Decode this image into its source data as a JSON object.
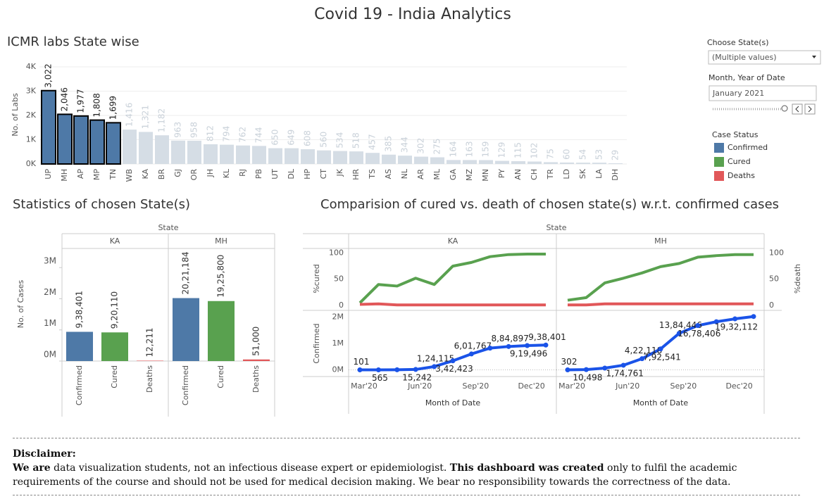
{
  "title": "Covid 19 - India Analytics",
  "filters": {
    "state_label": "Choose State(s)",
    "state_value": "(Multiple values)",
    "date_label": "Month, Year of Date",
    "date_value": "January 2021"
  },
  "legend": {
    "title": "Case Status",
    "items": [
      {
        "name": "Confirmed",
        "color": "#4e79a7"
      },
      {
        "name": "Cured",
        "color": "#59a14f"
      },
      {
        "name": "Deaths",
        "color": "#e15759"
      }
    ]
  },
  "chart_data": [
    {
      "type": "bar",
      "title": "ICMR labs State wise",
      "y_label": "No. of Labs",
      "categories": [
        "UP",
        "MH",
        "AP",
        "MP",
        "TN",
        "WB",
        "KA",
        "BR",
        "GJ",
        "OR",
        "JH",
        "KL",
        "RJ",
        "PB",
        "UT",
        "DL",
        "HP",
        "CT",
        "JK",
        "HR",
        "TS",
        "AS",
        "NL",
        "AR",
        "ML",
        "GA",
        "MZ",
        "MN",
        "PY",
        "AN",
        "CH",
        "TR",
        "LD",
        "SK",
        "LA",
        "DH"
      ],
      "values": [
        3022,
        2046,
        1977,
        1808,
        1699,
        1416,
        1321,
        1182,
        963,
        958,
        812,
        794,
        762,
        744,
        650,
        649,
        608,
        560,
        534,
        518,
        457,
        385,
        344,
        302,
        275,
        164,
        163,
        159,
        129,
        115,
        102,
        75,
        60,
        54,
        53,
        29
      ],
      "value_labels": [
        "3,022",
        "2,046",
        "1,977",
        "1,808",
        "1,699",
        "1,416",
        "1,321",
        "1,182",
        "963",
        "958",
        "812",
        "794",
        "762",
        "744",
        "650",
        "649",
        "608",
        "560",
        "534",
        "518",
        "457",
        "385",
        "344",
        "302",
        "275",
        "164",
        "163",
        "159",
        "129",
        "115",
        "102",
        "75",
        "60",
        "54",
        "53",
        "29"
      ],
      "colors": [
        "#4e79a7",
        "#4e79a7",
        "#4e79a7",
        "#4e79a7",
        "#4e79a7",
        "#d5dde5",
        "#d5dde5",
        "#d5dde5",
        "#d5dde5",
        "#d5dde5",
        "#d5dde5",
        "#d5dde5",
        "#d5dde5",
        "#d5dde5",
        "#d5dde5",
        "#d5dde5",
        "#d5dde5",
        "#d5dde5",
        "#d5dde5",
        "#d5dde5",
        "#d5dde5",
        "#d5dde5",
        "#d5dde5",
        "#d5dde5",
        "#d5dde5",
        "#d5dde5",
        "#d5dde5",
        "#d5dde5",
        "#d5dde5",
        "#d5dde5",
        "#d5dde5",
        "#d5dde5",
        "#d5dde5",
        "#d5dde5",
        "#d5dde5",
        "#d5dde5"
      ],
      "ylim": [
        0,
        4000
      ],
      "yticks": [
        {
          "value": 0,
          "label": "0K"
        },
        {
          "value": 1000,
          "label": "1K"
        },
        {
          "value": 2000,
          "label": "2K"
        },
        {
          "value": 3000,
          "label": "3K"
        },
        {
          "value": 4000,
          "label": "4K"
        }
      ],
      "grid": true
    },
    {
      "type": "grouped_bar",
      "title": "Statistics of chosen State(s)",
      "facet_label": "State",
      "y_label": "No. of Cases",
      "categories": [
        "Confirmed",
        "Cured",
        "Deaths"
      ],
      "colors": [
        "#4e79a7",
        "#59a14f",
        "#e15759"
      ],
      "facets": [
        {
          "name": "KA",
          "values": [
            938401,
            920110,
            12211
          ],
          "value_labels": [
            "9,38,401",
            "9,20,110",
            "12,211"
          ]
        },
        {
          "name": "MH",
          "values": [
            2021184,
            1925800,
            51000
          ],
          "value_labels": [
            "20,21,184",
            "19,25,800",
            "51,000"
          ]
        }
      ],
      "ylim": [
        0,
        3570000
      ],
      "yticks": [
        {
          "value": 0,
          "label": "0M"
        },
        {
          "value": 1000000,
          "label": "1M"
        },
        {
          "value": 2000000,
          "label": "2M"
        },
        {
          "value": 3000000,
          "label": "3M"
        }
      ]
    },
    {
      "type": "line",
      "title": "Comparision of cured vs. death of chosen state(s) w.r.t. confirmed cases",
      "facet_label": "State",
      "x_label": "Month of Date",
      "categories": [
        "Mar'20",
        null,
        null,
        "Jun'20",
        null,
        null,
        "Sep'20",
        null,
        null,
        "Dec'20",
        null
      ],
      "colors": {
        "cured": "#59a14f",
        "death": "#e15759",
        "confirmed": "#1a53e8"
      },
      "top": {
        "y_label": "%cured",
        "ylim": [
          -8,
          110
        ],
        "yticks": [
          0,
          50,
          100
        ],
        "y2_label": "%death",
        "y2lim": [
          -8,
          110
        ],
        "y2ticks": [
          0,
          50,
          100
        ]
      },
      "bottom": {
        "y_label": "Confirmed",
        "ylim": [
          -200000,
          2200000
        ],
        "yticks": [
          {
            "value": 0,
            "label": "0M"
          },
          {
            "value": 1000000,
            "label": "1M"
          },
          {
            "value": 2000000,
            "label": "2M"
          }
        ]
      },
      "facets": [
        {
          "name": "KA",
          "cured": [
            5,
            40,
            37,
            52,
            40,
            75,
            82,
            93,
            97,
            98,
            98
          ],
          "death": [
            2,
            3,
            1,
            1,
            1,
            1,
            1,
            1,
            1,
            1,
            1
          ],
          "confirmed": [
            101,
            565,
            3221,
            15242,
            124115,
            342423,
            601767,
            823412,
            884897,
            919496,
            938401
          ],
          "confirmed_labels": [
            "101",
            "565",
            null,
            "15,242",
            "1,24,115",
            "3,42,423",
            "6,01,767",
            null,
            "8,84,897",
            "9,19,496",
            "9,38,401"
          ]
        },
        {
          "name": "MH",
          "cured": [
            10,
            15,
            43,
            52,
            62,
            74,
            80,
            92,
            95,
            97,
            97
          ],
          "death": [
            1,
            1,
            3,
            3,
            3,
            3,
            3,
            3,
            3,
            3,
            3
          ],
          "confirmed": [
            302,
            10498,
            67655,
            174761,
            422118,
            792541,
            1384446,
            1678406,
            1823896,
            1932112,
            2021184
          ],
          "confirmed_labels": [
            "302",
            "10,498",
            null,
            "1,74,761",
            "4,22,118",
            "7,92,541",
            "13,84,446",
            "16,78,406",
            null,
            "19,32,112",
            null
          ]
        }
      ]
    }
  ],
  "disclaimer": {
    "heading": "Disclaimer:",
    "parts": [
      {
        "text": "We are",
        "bold": true
      },
      {
        "text": " data visualization students, not an infectious disease expert or epidemiologist. ",
        "bold": false
      },
      {
        "text": "This dashboard was created",
        "bold": true
      },
      {
        "text": " only to fulfil the academic requirements of the course and should not be used for medical decision making. We bear no responsibility towards the correctness of the data.",
        "bold": false
      }
    ]
  }
}
